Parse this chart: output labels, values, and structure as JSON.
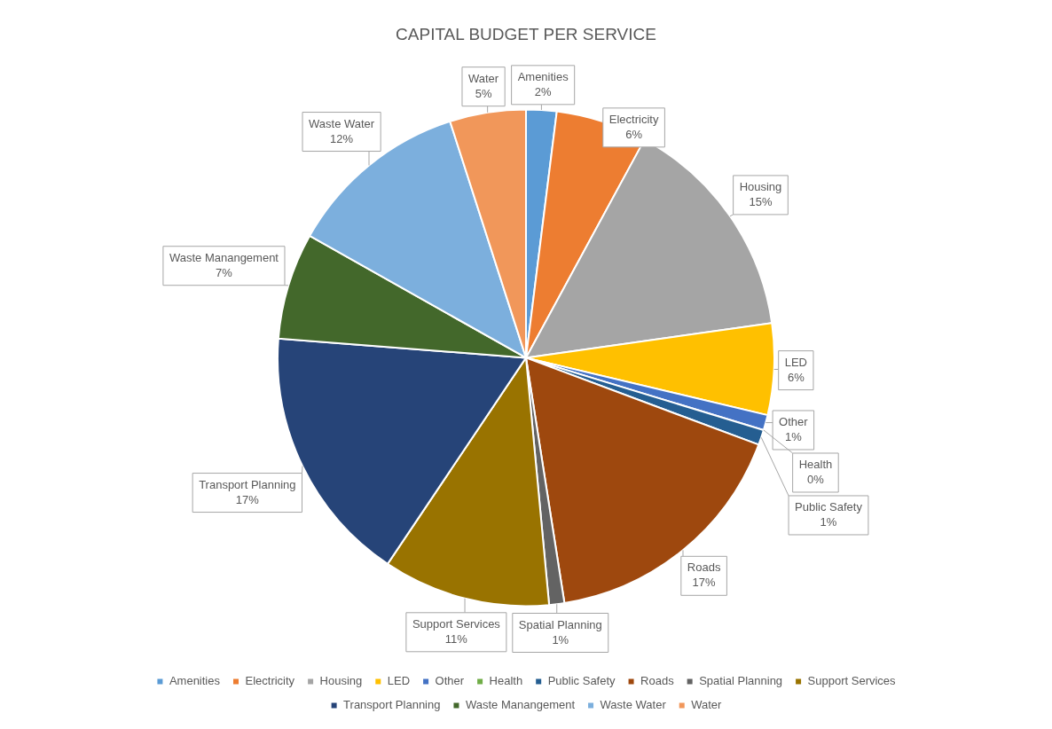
{
  "chart_data": {
    "type": "pie",
    "title": "CAPITAL BUDGET PER SERVICE",
    "categories": [
      "Amenities",
      "Electricity",
      "Housing",
      "LED",
      "Other",
      "Health",
      "Public Safety",
      "Roads",
      "Spatial Planning",
      "Support Services",
      "Transport Planning",
      "Waste Manangement",
      "Waste Water",
      "Water"
    ],
    "values": [
      2,
      6,
      15,
      6,
      1,
      0,
      1,
      17,
      1,
      11,
      17,
      7,
      12,
      5
    ],
    "value_labels": [
      "2%",
      "6%",
      "15%",
      "6%",
      "1%",
      "0%",
      "1%",
      "17%",
      "1%",
      "11%",
      "17%",
      "7%",
      "12%",
      "5%"
    ],
    "colors": [
      "#5b9bd5",
      "#ed7d31",
      "#a5a5a5",
      "#ffc000",
      "#4472c4",
      "#70ad47",
      "#255e91",
      "#9e480e",
      "#636363",
      "#997300",
      "#264478",
      "#43682b",
      "#7cafdd",
      "#f1975a"
    ],
    "legend": "bottom"
  }
}
